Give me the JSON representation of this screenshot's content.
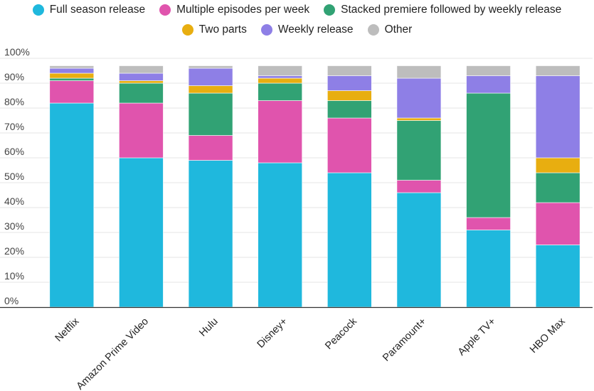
{
  "chart_data": {
    "type": "bar",
    "stacked": true,
    "title": "",
    "xlabel": "",
    "ylabel": "",
    "ylim": [
      0,
      100
    ],
    "y_ticks": [
      "0%",
      "10%",
      "20%",
      "30%",
      "40%",
      "50%",
      "60%",
      "70%",
      "80%",
      "90%",
      "100%"
    ],
    "grid": true,
    "legend_position": "top",
    "categories": [
      "Netflix",
      "Amazon Prime Video",
      "Hulu",
      "Disney+",
      "Peacock",
      "Paramount+",
      "Apple TV+",
      "HBO Max"
    ],
    "series": [
      {
        "name": "Full season release",
        "color": "#1fb8dd",
        "values": [
          82,
          60,
          59,
          58,
          54,
          46,
          31,
          25
        ]
      },
      {
        "name": "Multiple episodes per week",
        "color": "#e054ad",
        "values": [
          9,
          22,
          10,
          25,
          22,
          5,
          5,
          17
        ]
      },
      {
        "name": "Stacked premiere followed by weekly release",
        "color": "#31a274",
        "values": [
          1,
          8,
          17,
          7,
          7,
          24,
          50,
          12
        ]
      },
      {
        "name": "Two parts",
        "color": "#e8ae10",
        "values": [
          2,
          1,
          3,
          2,
          4,
          1,
          0,
          6
        ]
      },
      {
        "name": "Weekly release",
        "color": "#8e7fe6",
        "values": [
          2,
          3,
          7,
          1,
          6,
          16,
          7,
          33
        ]
      },
      {
        "name": "Other",
        "color": "#bdbdbd",
        "values": [
          1,
          3,
          1,
          4,
          4,
          5,
          4,
          4
        ]
      }
    ]
  }
}
